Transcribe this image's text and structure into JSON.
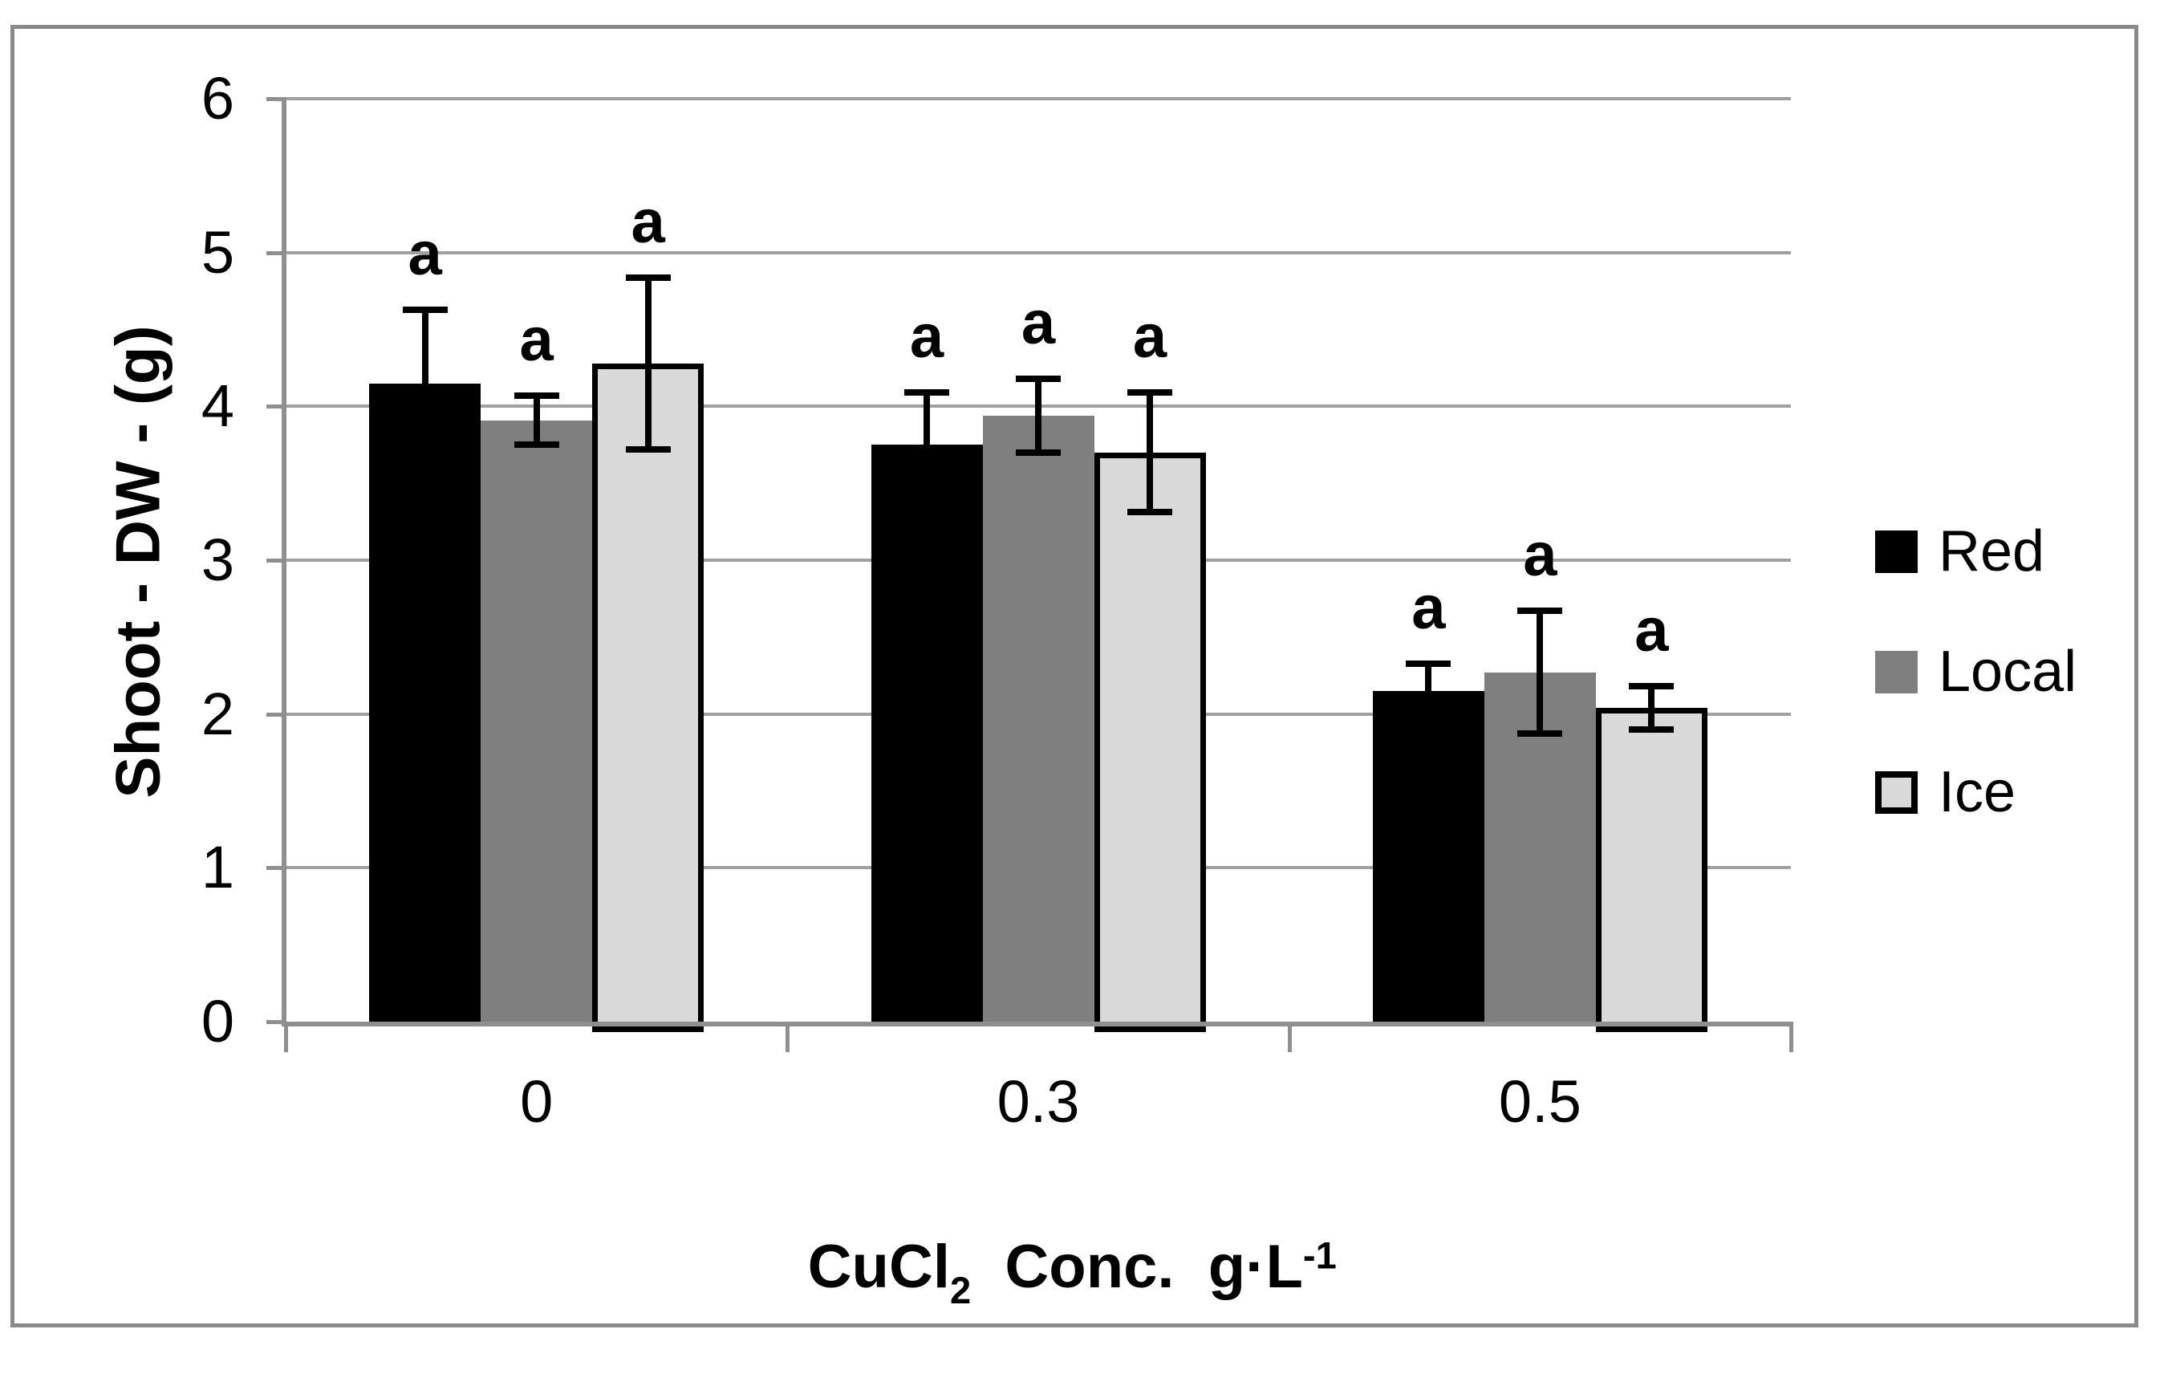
{
  "chart_data": {
    "type": "bar",
    "categories": [
      "0",
      "0.3",
      "0.5"
    ],
    "series": [
      {
        "name": "Red",
        "fill": "#000000",
        "outlined": false,
        "values": [
          4.15,
          3.75,
          2.15
        ],
        "errors": [
          0.5,
          0.36,
          0.2
        ]
      },
      {
        "name": "Local",
        "fill": "#7f7f7f",
        "outlined": false,
        "values": [
          3.91,
          3.94,
          2.27
        ],
        "errors": [
          0.18,
          0.26,
          0.42
        ]
      },
      {
        "name": "Ice",
        "fill": "#d9d9d9",
        "outlined": true,
        "values": [
          4.28,
          3.7,
          2.04
        ],
        "errors": [
          0.58,
          0.41,
          0.16
        ]
      }
    ],
    "sig_labels": [
      [
        "a",
        "a",
        "a"
      ],
      [
        "a",
        "a",
        "a"
      ],
      [
        "a",
        "a",
        "a"
      ]
    ],
    "ylabel": "Shoot - DW - (g)",
    "xlabel": {
      "base": "CuCl",
      "sub": "2",
      "mid": "  Conc.  g·L",
      "sup": "-1"
    },
    "yticks": [
      "0",
      "1",
      "2",
      "3",
      "4",
      "5",
      "6"
    ],
    "ylim": [
      0,
      6
    ],
    "grid": true,
    "legend_position": "right",
    "legend_entries": [
      "Red",
      "Local",
      "Ice"
    ],
    "colors": {
      "axis": "#8f8f8f",
      "gridline": "#a0a0a0",
      "frame_border": "#8a8a8a",
      "error_bar": "#000000",
      "text": "#000000"
    }
  }
}
